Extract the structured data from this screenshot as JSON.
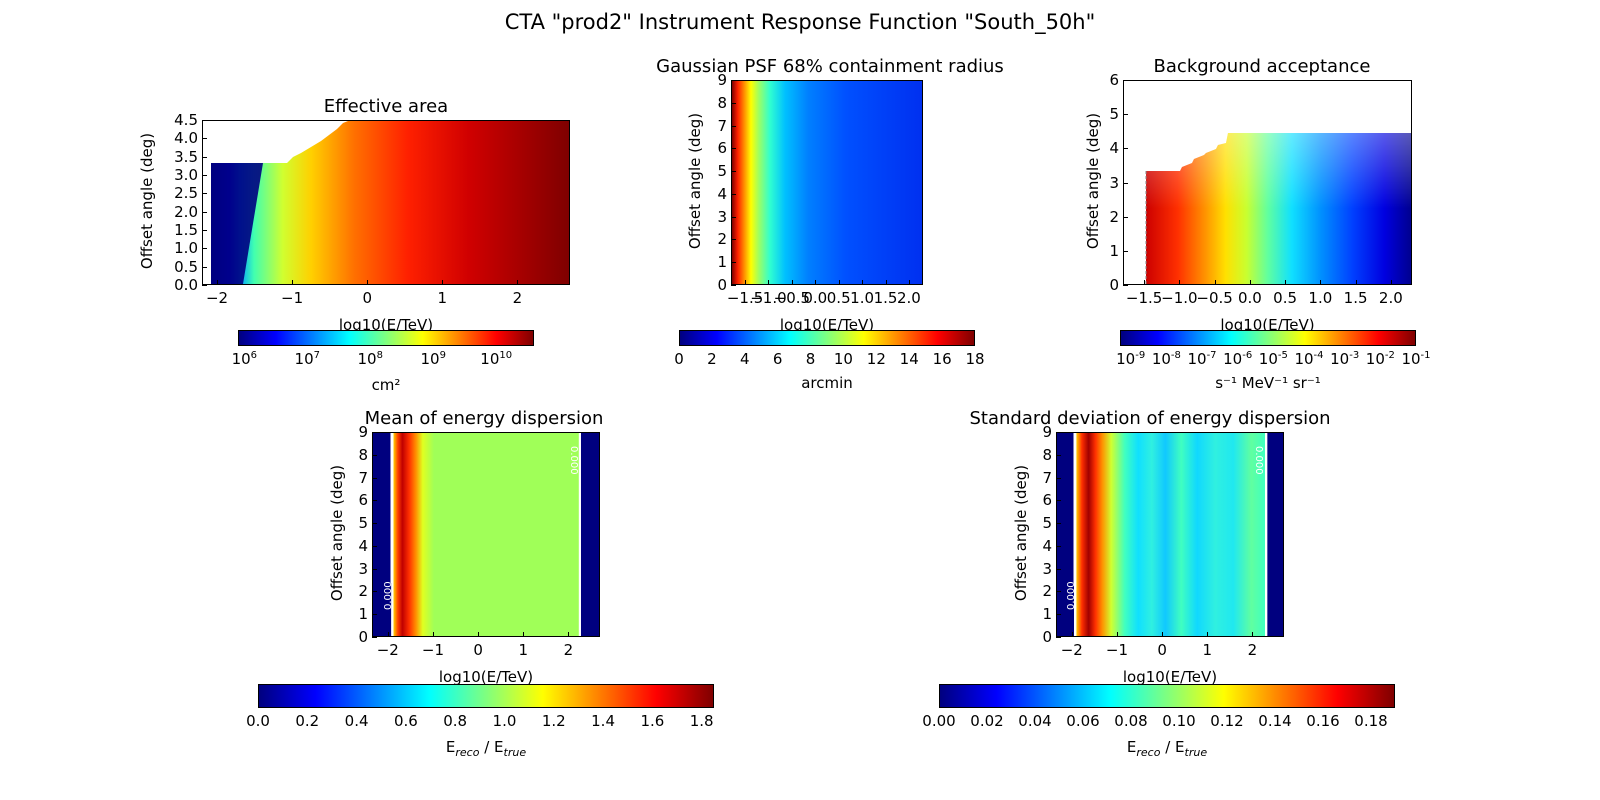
{
  "title": "CTA \"prod2\" Instrument Response Function \"South_50h\"",
  "colormap": [
    "#00007f",
    "#0000ff",
    "#007fff",
    "#00ffff",
    "#7fff7f",
    "#ffff00",
    "#ff7f00",
    "#ff0000",
    "#7f0000"
  ],
  "chart_data": [
    {
      "type": "heatmap",
      "title": "Effective area",
      "xlabel": "log10(E/TeV)",
      "ylabel": "Offset angle (deg)",
      "xlim": [
        -2.2,
        2.7
      ],
      "ylim": [
        0.0,
        4.5
      ],
      "xticks": [
        "−2",
        "−1",
        "0",
        "1",
        "2"
      ],
      "xtick_values": [
        -2,
        -1,
        0,
        1,
        2
      ],
      "yticks": [
        "0.0",
        "0.5",
        "1.0",
        "1.5",
        "2.0",
        "2.5",
        "3.0",
        "3.5",
        "4.0",
        "4.5"
      ],
      "ytick_values": [
        0.0,
        0.5,
        1.0,
        1.5,
        2.0,
        2.5,
        3.0,
        3.5,
        4.0,
        4.5
      ],
      "colorbar": {
        "label": "cm²",
        "scale": "log",
        "tick_base": "10",
        "tick_exponents": [
          "6",
          "7",
          "8",
          "9",
          "10"
        ],
        "range_exponent": [
          5.9,
          10.6
        ]
      },
      "max_offset_vs_energy": {
        "x": [
          -2.15,
          -1.5,
          -1.0,
          -0.5,
          -0.2
        ],
        "y": [
          3.3,
          3.3,
          3.6,
          3.9,
          4.5
        ]
      },
      "grid": false
    },
    {
      "type": "heatmap",
      "title": "Gaussian PSF 68% containment radius",
      "xlabel": "log10(E/TeV)",
      "ylabel": "Offset angle (deg)",
      "xlim": [
        -1.8,
        2.3
      ],
      "ylim": [
        0,
        9
      ],
      "xticks": [
        "−1.5",
        "−1.0",
        "−0.5",
        "0.0",
        "0.5",
        "1.0",
        "1.5",
        "2.0"
      ],
      "xtick_values": [
        -1.5,
        -1.0,
        -0.5,
        0.0,
        0.5,
        1.0,
        1.5,
        2.0
      ],
      "yticks": [
        "0",
        "1",
        "2",
        "3",
        "4",
        "5",
        "6",
        "7",
        "8",
        "9"
      ],
      "ytick_values": [
        0,
        1,
        2,
        3,
        4,
        5,
        6,
        7,
        8,
        9
      ],
      "colorbar": {
        "label": "arcmin",
        "scale": "linear",
        "ticks": [
          "0",
          "2",
          "4",
          "6",
          "8",
          "10",
          "12",
          "14",
          "16",
          "18"
        ],
        "range": [
          0,
          18
        ]
      },
      "grid": false
    },
    {
      "type": "heatmap",
      "title": "Background acceptance",
      "xlabel": "log10(E/TeV)",
      "ylabel": "Offset angle (deg)",
      "xlim": [
        -1.8,
        2.3
      ],
      "ylim": [
        0,
        6
      ],
      "xticks": [
        "−1.5",
        "−1.0",
        "−0.5",
        "0.0",
        "0.5",
        "1.0",
        "1.5",
        "2.0"
      ],
      "xtick_values": [
        -1.5,
        -1.0,
        -0.5,
        0.0,
        0.5,
        1.0,
        1.5,
        2.0
      ],
      "yticks": [
        "0",
        "1",
        "2",
        "3",
        "4",
        "5",
        "6"
      ],
      "ytick_values": [
        0,
        1,
        2,
        3,
        4,
        5,
        6
      ],
      "colorbar": {
        "label": "s⁻¹ MeV⁻¹ sr⁻¹",
        "scale": "log",
        "tick_base": "10",
        "tick_exponents": [
          "-9",
          "-8",
          "-7",
          "-6",
          "-5",
          "-4",
          "-3",
          "-2",
          "-1"
        ],
        "range_exponent": [
          -9.3,
          -1.0
        ]
      },
      "max_offset_vs_energy": {
        "x": [
          -1.5,
          -1.0,
          -0.8,
          -0.6,
          -0.4,
          -0.2,
          2.3
        ],
        "y": [
          3.35,
          3.5,
          3.7,
          3.9,
          4.1,
          4.5,
          4.5
        ]
      },
      "grid": false
    },
    {
      "type": "heatmap",
      "title": "Mean of energy dispersion",
      "xlabel": "log10(E/TeV)",
      "ylabel": "Offset angle (deg)",
      "xlim": [
        -2.35,
        2.7
      ],
      "ylim": [
        0,
        9
      ],
      "xticks": [
        "−2",
        "−1",
        "0",
        "1",
        "2"
      ],
      "xtick_values": [
        -2,
        -1,
        0,
        1,
        2
      ],
      "yticks": [
        "0",
        "1",
        "2",
        "3",
        "4",
        "5",
        "6",
        "7",
        "8",
        "9"
      ],
      "ytick_values": [
        0,
        1,
        2,
        3,
        4,
        5,
        6,
        7,
        8,
        9
      ],
      "contour_label": "0.000",
      "colorbar": {
        "label_main": "E",
        "label_sub1": "reco",
        "label_mid": " / E",
        "label_sub2": "true",
        "scale": "linear",
        "ticks": [
          "0.0",
          "0.2",
          "0.4",
          "0.6",
          "0.8",
          "1.0",
          "1.2",
          "1.4",
          "1.6",
          "1.8"
        ],
        "range": [
          0.0,
          1.85
        ]
      },
      "grid": false
    },
    {
      "type": "heatmap",
      "title": "Standard deviation of energy dispersion",
      "xlabel": "log10(E/TeV)",
      "ylabel": "Offset angle (deg)",
      "xlim": [
        -2.35,
        2.7
      ],
      "ylim": [
        0,
        9
      ],
      "xticks": [
        "−2",
        "−1",
        "0",
        "1",
        "2"
      ],
      "xtick_values": [
        -2,
        -1,
        0,
        1,
        2
      ],
      "yticks": [
        "0",
        "1",
        "2",
        "3",
        "4",
        "5",
        "6",
        "7",
        "8",
        "9"
      ],
      "ytick_values": [
        0,
        1,
        2,
        3,
        4,
        5,
        6,
        7,
        8,
        9
      ],
      "contour_label": "0.000",
      "colorbar": {
        "label_main": "E",
        "label_sub1": "reco",
        "label_mid": " / E",
        "label_sub2": "true",
        "scale": "linear",
        "ticks": [
          "0.00",
          "0.02",
          "0.04",
          "0.06",
          "0.08",
          "0.10",
          "0.12",
          "0.14",
          "0.16",
          "0.18"
        ],
        "range": [
          0.0,
          0.19
        ]
      },
      "grid": false
    }
  ]
}
